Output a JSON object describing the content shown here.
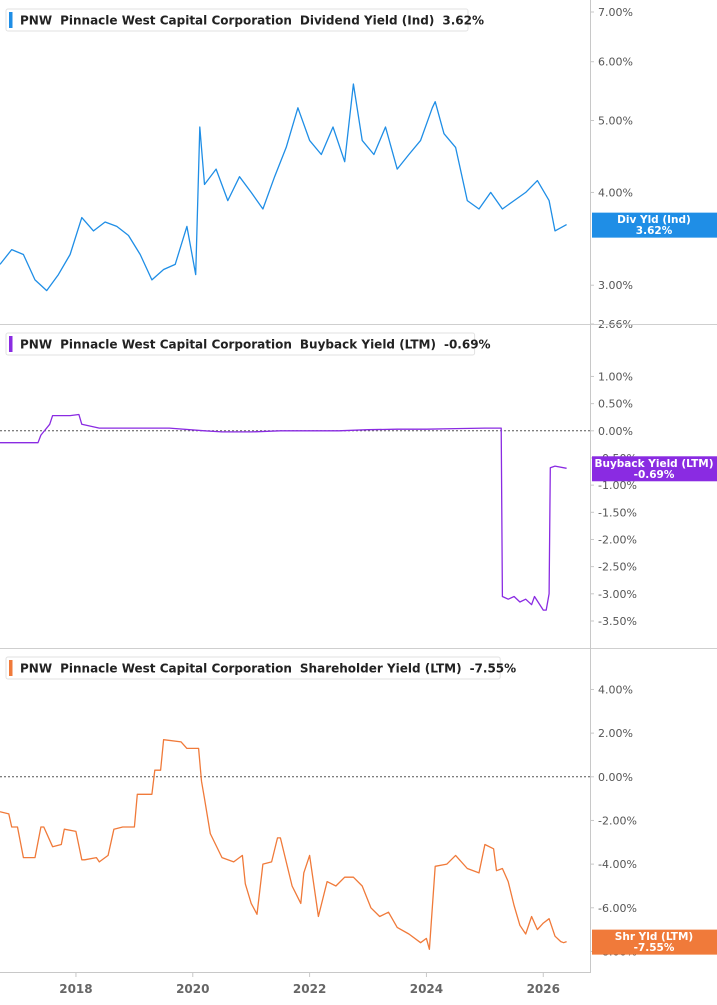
{
  "chart_data": [
    {
      "type": "line",
      "legend": {
        "ticker": "PNW",
        "company": "Pinnacle West Capital Corporation",
        "metric": "Dividend Yield (Ind)",
        "value": "3.62%"
      },
      "color": "#1f8ee6",
      "tag": {
        "label": "Div Yld (Ind)",
        "value": "3.62%"
      },
      "y_ticks": [
        "7.00%",
        "6.00%",
        "5.00%",
        "4.00%",
        "3.00%",
        "2.66%"
      ],
      "y_tick_values": [
        7.0,
        6.0,
        5.0,
        4.0,
        3.0,
        2.66
      ],
      "scale": "log",
      "ylim": [
        2.66,
        7.0
      ],
      "zero_line": false,
      "series": {
        "x": [
          2016.7,
          2016.9,
          2017.1,
          2017.3,
          2017.5,
          2017.7,
          2017.9,
          2018.1,
          2018.3,
          2018.5,
          2018.7,
          2018.9,
          2019.1,
          2019.3,
          2019.5,
          2019.7,
          2019.9,
          2020.05,
          2020.12,
          2020.2,
          2020.4,
          2020.6,
          2020.8,
          2021.0,
          2021.2,
          2021.4,
          2021.6,
          2021.8,
          2022.0,
          2022.2,
          2022.4,
          2022.6,
          2022.75,
          2022.9,
          2023.1,
          2023.3,
          2023.5,
          2023.7,
          2023.9,
          2024.1,
          2024.15,
          2024.3,
          2024.5,
          2024.7,
          2024.9,
          2025.1,
          2025.3,
          2025.5,
          2025.7,
          2025.9,
          2026.1,
          2026.2,
          2026.4
        ],
        "y": [
          3.2,
          3.35,
          3.3,
          3.05,
          2.95,
          3.1,
          3.3,
          3.7,
          3.55,
          3.65,
          3.6,
          3.5,
          3.3,
          3.05,
          3.15,
          3.2,
          3.6,
          3.1,
          4.9,
          4.1,
          4.3,
          3.9,
          4.2,
          4.0,
          3.8,
          4.2,
          4.6,
          5.2,
          4.7,
          4.5,
          4.9,
          4.4,
          5.6,
          4.7,
          4.5,
          4.9,
          4.3,
          4.5,
          4.7,
          5.2,
          5.3,
          4.8,
          4.6,
          3.9,
          3.8,
          4.0,
          3.8,
          3.9,
          4.0,
          4.15,
          3.9,
          3.55,
          3.62
        ]
      }
    },
    {
      "type": "line",
      "legend": {
        "ticker": "PNW",
        "company": "Pinnacle West Capital Corporation",
        "metric": "Buyback Yield (LTM)",
        "value": "-0.69%"
      },
      "color": "#8a2be2",
      "tag": {
        "label": "Buyback Yield (LTM)",
        "value": "-0.69%"
      },
      "y_ticks": [
        "1.00%",
        "0.50%",
        "0.00%",
        "-0.50%",
        "-1.00%",
        "-1.50%",
        "-2.00%",
        "-2.50%",
        "-3.00%",
        "-3.50%"
      ],
      "y_tick_values": [
        1.0,
        0.5,
        0.0,
        -0.5,
        -1.0,
        -1.5,
        -2.0,
        -2.5,
        -3.0,
        -3.5
      ],
      "scale": "linear",
      "ylim": [
        -3.85,
        1.45
      ],
      "zero_line": true,
      "series": {
        "x": [
          2016.7,
          2017.35,
          2017.4,
          2017.55,
          2017.6,
          2017.9,
          2018.05,
          2018.1,
          2018.4,
          2019.0,
          2019.6,
          2020.2,
          2020.5,
          2021.0,
          2021.5,
          2022.0,
          2022.5,
          2023.0,
          2023.5,
          2024.0,
          2024.5,
          2025.0,
          2025.2,
          2025.28,
          2025.3,
          2025.4,
          2025.5,
          2025.6,
          2025.7,
          2025.8,
          2025.85,
          2026.0,
          2026.05,
          2026.1,
          2026.12,
          2026.2,
          2026.4
        ],
        "y": [
          -0.22,
          -0.22,
          -0.08,
          0.12,
          0.28,
          0.28,
          0.3,
          0.12,
          0.05,
          0.05,
          0.05,
          0.0,
          -0.02,
          -0.02,
          0.0,
          0.0,
          0.0,
          0.02,
          0.03,
          0.03,
          0.04,
          0.05,
          0.05,
          0.05,
          -3.05,
          -3.1,
          -3.05,
          -3.15,
          -3.1,
          -3.2,
          -3.05,
          -3.3,
          -3.3,
          -3.0,
          -0.68,
          -0.65,
          -0.69
        ]
      }
    },
    {
      "type": "line",
      "legend": {
        "ticker": "PNW",
        "company": "Pinnacle West Capital Corporation",
        "metric": "Shareholder Yield (LTM)",
        "value": "-7.55%"
      },
      "color": "#f07a3a",
      "tag": {
        "label": "Shr Yld (LTM)",
        "value": "-7.55%"
      },
      "y_ticks": [
        "4.00%",
        "2.00%",
        "0.00%",
        "-2.00%",
        "-4.00%",
        "-6.00%",
        "-8.00%"
      ],
      "y_tick_values": [
        4.0,
        2.0,
        0.0,
        -2.0,
        -4.0,
        -6.0,
        -8.0
      ],
      "scale": "linear",
      "ylim": [
        -8.3,
        4.8
      ],
      "zero_line": true,
      "series": {
        "x": [
          2016.7,
          2016.85,
          2016.9,
          2017.0,
          2017.1,
          2017.3,
          2017.4,
          2017.45,
          2017.6,
          2017.75,
          2017.8,
          2018.0,
          2018.1,
          2018.15,
          2018.35,
          2018.4,
          2018.55,
          2018.65,
          2018.8,
          2019.0,
          2019.05,
          2019.3,
          2019.35,
          2019.45,
          2019.5,
          2019.8,
          2019.9,
          2020.1,
          2020.15,
          2020.2,
          2020.3,
          2020.5,
          2020.7,
          2020.85,
          2020.9,
          2021.0,
          2021.1,
          2021.2,
          2021.35,
          2021.45,
          2021.5,
          2021.7,
          2021.85,
          2021.9,
          2022.0,
          2022.15,
          2022.3,
          2022.45,
          2022.6,
          2022.75,
          2022.9,
          2023.05,
          2023.2,
          2023.35,
          2023.5,
          2023.7,
          2023.9,
          2024.0,
          2024.05,
          2024.15,
          2024.35,
          2024.5,
          2024.7,
          2024.9,
          2025.0,
          2025.15,
          2025.2,
          2025.3,
          2025.4,
          2025.5,
          2025.6,
          2025.7,
          2025.8,
          2025.9,
          2026.0,
          2026.1,
          2026.2,
          2026.3,
          2026.35,
          2026.4
        ],
        "y": [
          -1.6,
          -1.7,
          -2.3,
          -2.3,
          -3.7,
          -3.7,
          -2.3,
          -2.3,
          -3.2,
          -3.1,
          -2.4,
          -2.5,
          -3.8,
          -3.8,
          -3.7,
          -3.9,
          -3.6,
          -2.4,
          -2.3,
          -2.3,
          -0.8,
          -0.8,
          0.3,
          0.3,
          1.7,
          1.6,
          1.3,
          1.3,
          -0.2,
          -1.0,
          -2.6,
          -3.7,
          -3.9,
          -3.6,
          -4.9,
          -5.8,
          -6.3,
          -4.0,
          -3.9,
          -2.8,
          -2.8,
          -5.0,
          -5.8,
          -4.4,
          -3.6,
          -6.4,
          -4.8,
          -5.0,
          -4.6,
          -4.6,
          -5.0,
          -6.0,
          -6.4,
          -6.2,
          -6.9,
          -7.2,
          -7.6,
          -7.4,
          -7.9,
          -4.1,
          -4.0,
          -3.6,
          -4.2,
          -4.4,
          -3.1,
          -3.3,
          -4.3,
          -4.2,
          -4.8,
          -5.9,
          -6.8,
          -7.2,
          -6.4,
          -7.0,
          -6.7,
          -6.5,
          -7.3,
          -7.55,
          -7.6,
          -7.55
        ]
      }
    }
  ],
  "x_axis": {
    "ticks": [
      "2018",
      "2020",
      "2022",
      "2024",
      "2026"
    ],
    "tick_values": [
      2018,
      2020,
      2022,
      2024,
      2026
    ],
    "xlim": [
      2016.7,
      2026.8
    ]
  }
}
